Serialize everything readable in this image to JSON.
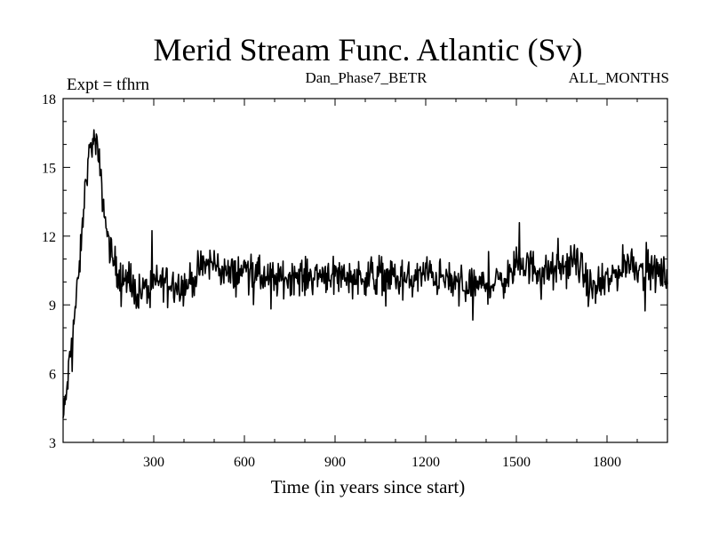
{
  "chart_data": {
    "type": "line",
    "title": "Merid Stream Func. Atlantic (Sv)",
    "subtitle_left": "Expt = tfhrn",
    "subtitle_center": "Dan_Phase7_BETR",
    "subtitle_right": "ALL_MONTHS",
    "xlabel": "Time (in years since start)",
    "ylabel": "",
    "xlim": [
      0,
      2000
    ],
    "ylim": [
      3,
      18
    ],
    "x_ticks": [
      300,
      600,
      900,
      1200,
      1500,
      1800
    ],
    "x_tick_labels": [
      "300",
      "600",
      "900",
      "1200",
      "1500",
      "1800"
    ],
    "y_ticks": [
      3,
      6,
      9,
      12,
      15,
      18
    ],
    "y_tick_labels": [
      "3",
      "6",
      "9",
      "12",
      "15",
      "18"
    ],
    "grid": false,
    "series": [
      {
        "name": "Merid Stream Func. Atlantic",
        "color": "#000000",
        "anchors_x": [
          0,
          10,
          20,
          30,
          40,
          50,
          60,
          70,
          80,
          90,
          100,
          110,
          120,
          130,
          140,
          150,
          160,
          170,
          180,
          190,
          200,
          220,
          240,
          260,
          280,
          300,
          320,
          340,
          360,
          380,
          400,
          420,
          440,
          460,
          480,
          500,
          520,
          540,
          560,
          580,
          600,
          640,
          680,
          720,
          760,
          800,
          840,
          880,
          920,
          960,
          1000,
          1040,
          1080,
          1120,
          1160,
          1200,
          1240,
          1280,
          1320,
          1360,
          1400,
          1440,
          1480,
          1500,
          1520,
          1560,
          1600,
          1640,
          1680,
          1700,
          1720,
          1740,
          1760,
          1800,
          1840,
          1860,
          1880,
          1900,
          1920,
          1960,
          2000
        ],
        "anchors_y": [
          4.0,
          5.0,
          6.3,
          7.6,
          8.8,
          10.0,
          11.6,
          13.6,
          15.0,
          15.8,
          16.2,
          16.0,
          15.1,
          13.8,
          12.7,
          11.8,
          11.2,
          10.8,
          10.5,
          10.3,
          10.1,
          9.8,
          9.6,
          9.6,
          9.7,
          9.9,
          10.0,
          10.1,
          10.0,
          9.9,
          9.8,
          10.0,
          10.3,
          10.6,
          10.8,
          10.8,
          10.6,
          10.4,
          10.3,
          10.4,
          10.6,
          10.3,
          10.1,
          10.1,
          10.3,
          10.2,
          10.3,
          10.4,
          10.3,
          10.2,
          10.2,
          10.4,
          10.3,
          10.0,
          10.1,
          10.4,
          10.2,
          10.0,
          9.9,
          9.8,
          9.9,
          10.0,
          10.3,
          10.7,
          10.8,
          10.6,
          10.4,
          10.5,
          10.8,
          10.9,
          10.4,
          9.8,
          9.6,
          10.0,
          10.5,
          10.8,
          10.9,
          10.7,
          10.5,
          10.4,
          10.3
        ],
        "samples": 1000,
        "noise_amplitude": 0.6,
        "spike_min": 3.6,
        "spike_max": 17.9
      }
    ]
  }
}
